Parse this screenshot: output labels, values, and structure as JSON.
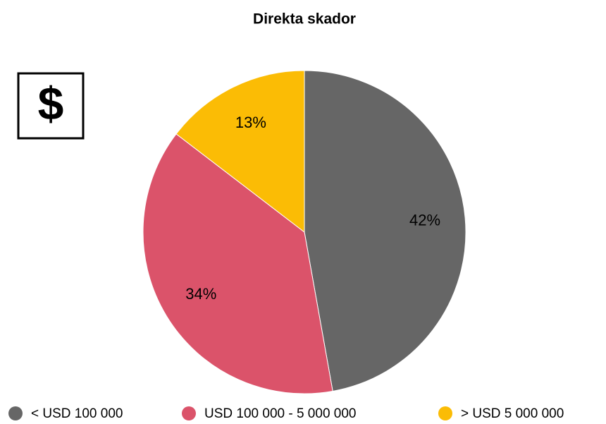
{
  "icon": "$",
  "chart_data": {
    "type": "pie",
    "title": "Direkta skador",
    "categories": [
      "< USD 100 000",
      "USD 100 000 - 5 000 000",
      "> USD 5 000 000"
    ],
    "values": [
      42,
      34,
      13
    ],
    "value_labels": [
      "42%",
      "34%",
      "13%"
    ],
    "colors": [
      "#666666",
      "#db536a",
      "#fbbc05"
    ],
    "legend": "bottom"
  }
}
